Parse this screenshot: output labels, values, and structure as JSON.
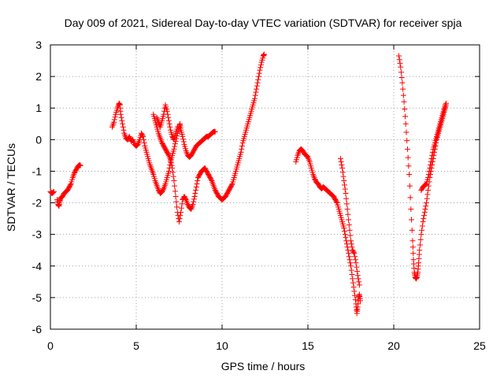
{
  "chart_data": {
    "type": "scatter",
    "title": "Day 009 of 2021, Sidereal Day-to-day VTEC variation (SDTVAR) for receiver spja",
    "xlabel": "GPS time / hours",
    "ylabel": "SDTVAR / TECUs",
    "xlim": [
      0,
      25
    ],
    "ylim": [
      -6,
      3
    ],
    "xticks": [
      0,
      5,
      10,
      15,
      20,
      25
    ],
    "yticks": [
      -6,
      -5,
      -4,
      -3,
      -2,
      -1,
      0,
      1,
      2,
      3
    ],
    "xtick_labels": [
      "0",
      "5",
      "10",
      "15",
      "20",
      "25"
    ],
    "ytick_labels": [
      "-6",
      "-5",
      "-4",
      "-3",
      "-2",
      "-1",
      "0",
      "1",
      "2",
      "3"
    ],
    "grid": true,
    "marker": "plus",
    "color": "#ff0000",
    "series": [
      {
        "name": "seg1",
        "points": [
          [
            0.0,
            -1.65
          ],
          [
            0.1,
            -1.7
          ],
          [
            0.2,
            -1.65
          ]
        ]
      },
      {
        "name": "seg2",
        "points": [
          [
            0.4,
            -1.9
          ],
          [
            0.45,
            -2.05
          ],
          [
            0.5,
            -2.1
          ],
          [
            0.55,
            -1.95
          ],
          [
            0.6,
            -1.85
          ],
          [
            0.7,
            -1.8
          ],
          [
            0.8,
            -1.7
          ],
          [
            0.9,
            -1.65
          ],
          [
            1.0,
            -1.6
          ],
          [
            1.1,
            -1.5
          ],
          [
            1.2,
            -1.4
          ],
          [
            1.3,
            -1.2
          ],
          [
            1.4,
            -1.05
          ],
          [
            1.5,
            -0.95
          ],
          [
            1.6,
            -0.85
          ],
          [
            1.7,
            -0.8
          ],
          [
            1.75,
            -0.82
          ]
        ]
      },
      {
        "name": "seg3",
        "points": [
          [
            3.6,
            0.4
          ],
          [
            3.7,
            0.55
          ],
          [
            3.8,
            0.8
          ],
          [
            3.9,
            1.0
          ],
          [
            4.0,
            1.15
          ],
          [
            4.05,
            1.1
          ],
          [
            4.1,
            0.8
          ],
          [
            4.2,
            0.5
          ],
          [
            4.3,
            0.2
          ],
          [
            4.4,
            0.05
          ],
          [
            4.5,
            0.0
          ],
          [
            4.6,
            0.1
          ],
          [
            4.7,
            -0.05
          ],
          [
            4.8,
            0.0
          ],
          [
            4.9,
            -0.15
          ],
          [
            5.0,
            -0.2
          ],
          [
            5.1,
            -0.15
          ],
          [
            5.2,
            0.0
          ],
          [
            5.3,
            0.2
          ],
          [
            5.4,
            0.1
          ],
          [
            5.5,
            -0.2
          ],
          [
            5.6,
            -0.4
          ],
          [
            5.7,
            -0.6
          ],
          [
            5.8,
            -0.8
          ],
          [
            5.9,
            -0.95
          ],
          [
            6.0,
            -1.1
          ],
          [
            6.1,
            -1.3
          ],
          [
            6.2,
            -1.45
          ],
          [
            6.3,
            -1.6
          ],
          [
            6.4,
            -1.7
          ],
          [
            6.5,
            -1.65
          ],
          [
            6.6,
            -1.55
          ],
          [
            6.7,
            -1.4
          ],
          [
            6.8,
            -1.2
          ],
          [
            6.9,
            -1.0
          ],
          [
            7.0,
            -0.7
          ],
          [
            7.1,
            -0.5
          ],
          [
            7.2,
            -0.3
          ],
          [
            7.3,
            -0.05
          ],
          [
            7.4,
            0.2
          ],
          [
            7.5,
            0.4
          ],
          [
            7.55,
            0.5
          ],
          [
            7.6,
            0.3
          ],
          [
            7.7,
            0.1
          ],
          [
            7.8,
            -0.15
          ],
          [
            7.9,
            -0.35
          ],
          [
            8.0,
            -0.5
          ],
          [
            8.1,
            -0.55
          ],
          [
            8.2,
            -0.5
          ],
          [
            8.3,
            -0.4
          ],
          [
            8.4,
            -0.3
          ],
          [
            8.5,
            -0.2
          ],
          [
            8.6,
            -0.15
          ],
          [
            8.7,
            -0.1
          ],
          [
            8.8,
            -0.05
          ],
          [
            8.9,
            0.0
          ],
          [
            9.0,
            0.05
          ],
          [
            9.1,
            0.1
          ],
          [
            9.2,
            0.1
          ],
          [
            9.3,
            0.15
          ],
          [
            9.4,
            0.2
          ],
          [
            9.5,
            0.25
          ],
          [
            9.6,
            0.25
          ]
        ]
      },
      {
        "name": "seg4",
        "points": [
          [
            6.0,
            0.8
          ],
          [
            6.1,
            0.6
          ],
          [
            6.2,
            0.4
          ],
          [
            6.3,
            0.2
          ],
          [
            6.4,
            0.05
          ],
          [
            6.5,
            -0.1
          ],
          [
            6.6,
            -0.2
          ],
          [
            6.7,
            -0.3
          ],
          [
            6.8,
            -0.4
          ],
          [
            6.9,
            -0.5
          ],
          [
            7.0,
            -0.65
          ],
          [
            7.1,
            -0.9
          ],
          [
            7.2,
            -1.3
          ],
          [
            7.3,
            -1.8
          ],
          [
            7.4,
            -2.3
          ],
          [
            7.5,
            -2.6
          ],
          [
            7.6,
            -2.3
          ],
          [
            7.7,
            -1.9
          ],
          [
            7.8,
            -1.8
          ],
          [
            7.9,
            -1.9
          ],
          [
            8.0,
            -2.05
          ],
          [
            8.1,
            -2.15
          ],
          [
            8.2,
            -2.2
          ],
          [
            8.3,
            -2.05
          ],
          [
            8.4,
            -1.8
          ],
          [
            8.5,
            -1.5
          ],
          [
            8.6,
            -1.2
          ],
          [
            8.7,
            -1.1
          ],
          [
            8.8,
            -1.0
          ],
          [
            8.9,
            -0.95
          ],
          [
            9.0,
            -0.9
          ],
          [
            9.1,
            -1.0
          ],
          [
            9.2,
            -1.1
          ],
          [
            9.3,
            -1.2
          ],
          [
            9.4,
            -1.3
          ],
          [
            9.5,
            -1.45
          ],
          [
            9.6,
            -1.6
          ],
          [
            9.7,
            -1.7
          ],
          [
            9.8,
            -1.8
          ],
          [
            9.9,
            -1.85
          ],
          [
            10.0,
            -1.9
          ],
          [
            10.1,
            -1.85
          ],
          [
            10.2,
            -1.8
          ],
          [
            10.3,
            -1.7
          ],
          [
            10.4,
            -1.6
          ],
          [
            10.5,
            -1.5
          ],
          [
            10.6,
            -1.4
          ],
          [
            10.7,
            -1.2
          ],
          [
            10.8,
            -1.0
          ],
          [
            10.9,
            -0.8
          ],
          [
            11.0,
            -0.6
          ],
          [
            11.1,
            -0.4
          ],
          [
            11.2,
            -0.1
          ],
          [
            11.3,
            0.1
          ],
          [
            11.4,
            0.3
          ],
          [
            11.5,
            0.5
          ],
          [
            11.6,
            0.7
          ],
          [
            11.7,
            0.9
          ],
          [
            11.8,
            1.1
          ],
          [
            11.9,
            1.3
          ],
          [
            12.0,
            1.6
          ],
          [
            12.1,
            1.9
          ],
          [
            12.2,
            2.2
          ],
          [
            12.3,
            2.45
          ],
          [
            12.4,
            2.65
          ],
          [
            12.45,
            2.7
          ]
        ]
      },
      {
        "name": "seg5",
        "points": [
          [
            6.2,
            0.7
          ],
          [
            6.3,
            0.55
          ],
          [
            6.4,
            0.4
          ],
          [
            6.5,
            0.6
          ],
          [
            6.6,
            0.8
          ],
          [
            6.7,
            1.1
          ],
          [
            6.8,
            0.9
          ],
          [
            6.9,
            0.6
          ],
          [
            7.0,
            0.3
          ],
          [
            7.1,
            0.1
          ],
          [
            7.2,
            0.0
          ],
          [
            7.3,
            0.2
          ],
          [
            7.4,
            0.4
          ]
        ]
      },
      {
        "name": "seg6",
        "points": [
          [
            14.3,
            -0.7
          ],
          [
            14.4,
            -0.5
          ],
          [
            14.5,
            -0.35
          ],
          [
            14.6,
            -0.3
          ],
          [
            14.7,
            -0.35
          ],
          [
            14.8,
            -0.45
          ],
          [
            14.9,
            -0.5
          ],
          [
            15.0,
            -0.55
          ],
          [
            15.1,
            -0.7
          ],
          [
            15.2,
            -0.9
          ],
          [
            15.3,
            -1.1
          ],
          [
            15.4,
            -1.25
          ],
          [
            15.5,
            -1.35
          ],
          [
            15.6,
            -1.4
          ],
          [
            15.7,
            -1.5
          ],
          [
            15.8,
            -1.55
          ],
          [
            15.9,
            -1.5
          ],
          [
            16.0,
            -1.55
          ],
          [
            16.1,
            -1.6
          ],
          [
            16.2,
            -1.65
          ],
          [
            16.3,
            -1.7
          ],
          [
            16.4,
            -1.75
          ],
          [
            16.5,
            -1.8
          ],
          [
            16.6,
            -1.9
          ],
          [
            16.7,
            -2.0
          ],
          [
            16.8,
            -2.2
          ],
          [
            16.9,
            -2.4
          ],
          [
            17.0,
            -2.6
          ],
          [
            17.1,
            -2.8
          ],
          [
            17.2,
            -3.1
          ],
          [
            17.3,
            -3.4
          ],
          [
            17.4,
            -3.7
          ],
          [
            17.5,
            -4.0
          ],
          [
            17.6,
            -4.4
          ],
          [
            17.7,
            -4.8
          ],
          [
            17.8,
            -5.2
          ],
          [
            17.85,
            -5.5
          ],
          [
            17.9,
            -5.3
          ],
          [
            17.95,
            -5.0
          ],
          [
            18.0,
            -4.9
          ],
          [
            18.05,
            -5.1
          ]
        ]
      },
      {
        "name": "seg7",
        "points": [
          [
            16.9,
            -0.6
          ],
          [
            17.0,
            -0.9
          ],
          [
            17.1,
            -1.3
          ],
          [
            17.2,
            -1.7
          ],
          [
            17.3,
            -2.2
          ],
          [
            17.4,
            -2.7
          ],
          [
            17.5,
            -3.2
          ],
          [
            17.6,
            -3.5
          ],
          [
            17.7,
            -3.6
          ],
          [
            17.8,
            -3.9
          ],
          [
            17.9,
            -4.3
          ],
          [
            18.0,
            -4.6
          ]
        ]
      },
      {
        "name": "seg8",
        "points": [
          [
            20.3,
            2.65
          ],
          [
            20.4,
            2.3
          ],
          [
            20.5,
            1.8
          ],
          [
            20.6,
            1.2
          ],
          [
            20.7,
            0.5
          ],
          [
            20.8,
            -0.3
          ],
          [
            20.9,
            -1.1
          ],
          [
            21.0,
            -2.2
          ],
          [
            21.1,
            -3.2
          ],
          [
            21.15,
            -3.8
          ],
          [
            21.2,
            -4.2
          ],
          [
            21.25,
            -4.35
          ],
          [
            21.3,
            -4.4
          ],
          [
            21.35,
            -4.35
          ],
          [
            21.4,
            -4.2
          ],
          [
            21.45,
            -3.9
          ],
          [
            21.5,
            -3.5
          ],
          [
            21.6,
            -3.0
          ],
          [
            21.7,
            -2.6
          ],
          [
            21.8,
            -2.3
          ],
          [
            21.9,
            -2.0
          ],
          [
            22.0,
            -1.6
          ],
          [
            22.1,
            -1.2
          ],
          [
            22.2,
            -0.9
          ],
          [
            22.3,
            -0.6
          ],
          [
            22.4,
            -0.3
          ],
          [
            22.5,
            0.0
          ],
          [
            22.6,
            0.2
          ],
          [
            22.7,
            0.4
          ],
          [
            22.8,
            0.6
          ],
          [
            22.9,
            0.8
          ],
          [
            23.0,
            1.0
          ],
          [
            23.05,
            1.15
          ]
        ]
      },
      {
        "name": "seg9",
        "points": [
          [
            21.6,
            -1.6
          ],
          [
            21.7,
            -1.5
          ],
          [
            21.8,
            -1.45
          ],
          [
            21.9,
            -1.4
          ],
          [
            22.0,
            -1.2
          ],
          [
            22.1,
            -0.9
          ],
          [
            22.2,
            -0.6
          ],
          [
            22.3,
            -0.3
          ],
          [
            22.4,
            -0.1
          ],
          [
            22.5,
            0.1
          ],
          [
            22.6,
            0.3
          ],
          [
            22.7,
            0.5
          ],
          [
            22.8,
            0.7
          ],
          [
            22.9,
            0.9
          ],
          [
            23.0,
            1.1
          ]
        ]
      }
    ]
  }
}
